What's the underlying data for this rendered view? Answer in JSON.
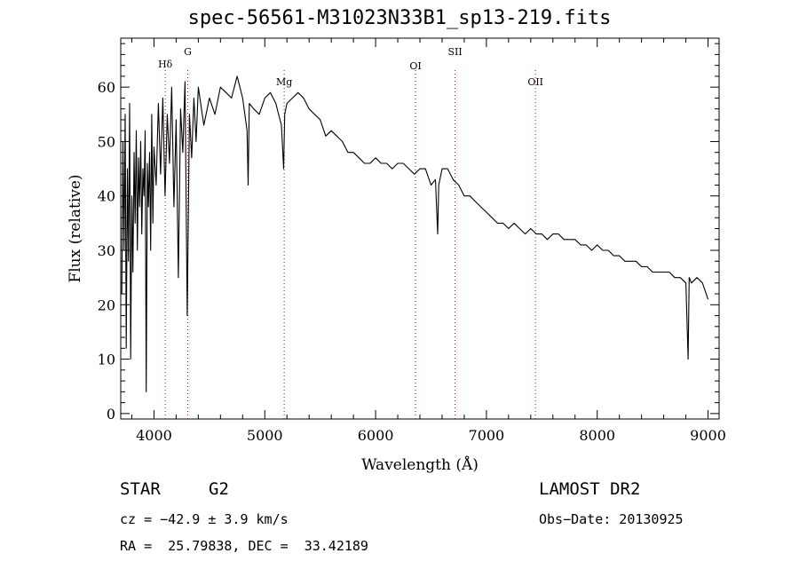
{
  "chart_data": {
    "type": "line",
    "title": "spec-56561-M31023N33B1_sp13-219.fits",
    "xlabel": "Wavelength (Å)",
    "ylabel": "Flux (relative)",
    "xlim": [
      3700,
      9100
    ],
    "ylim": [
      -1,
      69
    ],
    "xticks": [
      4000,
      5000,
      6000,
      7000,
      8000,
      9000
    ],
    "yticks": [
      0,
      10,
      20,
      30,
      40,
      50,
      60
    ],
    "grid": false,
    "line_color": "#000000",
    "marker_color": "#cc0000",
    "series": [
      {
        "x": [
          3710,
          3720,
          3730,
          3740,
          3750,
          3760,
          3770,
          3780,
          3790,
          3800,
          3810,
          3820,
          3830,
          3840,
          3850,
          3860,
          3870,
          3880,
          3890,
          3900,
          3910,
          3920,
          3930,
          3940,
          3950,
          3960,
          3970,
          3980,
          3990,
          4000,
          4020,
          4040,
          4060,
          4080,
          4100,
          4120,
          4140,
          4160,
          4180,
          4200,
          4220,
          4240,
          4260,
          4280,
          4300,
          4320,
          4340,
          4360,
          4380,
          4400,
          4450,
          4500,
          4550,
          4600,
          4650,
          4700,
          4750,
          4800,
          4840,
          4850,
          4860,
          4900,
          4950,
          5000,
          5050,
          5100,
          5150,
          5170,
          5180,
          5200,
          5250,
          5300,
          5350,
          5400,
          5450,
          5500,
          5550,
          5600,
          5650,
          5700,
          5750,
          5800,
          5850,
          5900,
          5950,
          6000,
          6050,
          6100,
          6150,
          6200,
          6250,
          6300,
          6350,
          6400,
          6450,
          6500,
          6540,
          6560,
          6570,
          6600,
          6650,
          6700,
          6750,
          6800,
          6850,
          6900,
          6950,
          7000,
          7050,
          7100,
          7150,
          7200,
          7250,
          7300,
          7350,
          7400,
          7450,
          7500,
          7550,
          7600,
          7650,
          7700,
          7750,
          7800,
          7850,
          7900,
          7950,
          8000,
          8050,
          8100,
          8150,
          8200,
          8250,
          8300,
          8350,
          8400,
          8450,
          8500,
          8550,
          8600,
          8650,
          8700,
          8750,
          8800,
          8820,
          8830,
          8850,
          8900,
          8950,
          9000
        ],
        "y": [
          22,
          50,
          30,
          55,
          12,
          45,
          28,
          57,
          10,
          40,
          26,
          48,
          35,
          52,
          30,
          47,
          38,
          50,
          33,
          45,
          40,
          52,
          4,
          46,
          38,
          48,
          30,
          55,
          35,
          49,
          42,
          57,
          44,
          58,
          40,
          55,
          46,
          60,
          38,
          54,
          25,
          56,
          48,
          61,
          18,
          55,
          47,
          58,
          50,
          60,
          53,
          58,
          55,
          60,
          59,
          58,
          62,
          58,
          52,
          42,
          57,
          56,
          55,
          58,
          59,
          57,
          53,
          45,
          55,
          57,
          58,
          59,
          58,
          56,
          55,
          54,
          51,
          52,
          51,
          50,
          48,
          48,
          47,
          46,
          46,
          47,
          46,
          46,
          45,
          46,
          46,
          45,
          44,
          45,
          45,
          42,
          43,
          33,
          42,
          45,
          45,
          43,
          42,
          40,
          40,
          39,
          38,
          37,
          36,
          35,
          35,
          34,
          35,
          34,
          33,
          34,
          33,
          33,
          32,
          33,
          33,
          32,
          32,
          32,
          31,
          31,
          30,
          31,
          30,
          30,
          29,
          29,
          28,
          28,
          28,
          27,
          27,
          26,
          26,
          26,
          26,
          25,
          25,
          24,
          10,
          25,
          24,
          25,
          24,
          21
        ]
      }
    ],
    "annotations": [
      {
        "label": "Hδ",
        "x": 4102
      },
      {
        "label": "G",
        "x": 4305
      },
      {
        "label": "Mg",
        "x": 5175
      },
      {
        "label": "OI",
        "x": 6360
      },
      {
        "label": "SII",
        "x": 6717
      },
      {
        "label": "OII",
        "x": 7443
      }
    ]
  },
  "info": {
    "class": "STAR",
    "subclass": "G2",
    "survey": "LAMOST DR2",
    "cz": "cz = −42.9 ± 3.9 km/s",
    "obs_date": "Obs−Date: 20130925",
    "coords": "RA =  25.79838, DEC =  33.42189"
  }
}
